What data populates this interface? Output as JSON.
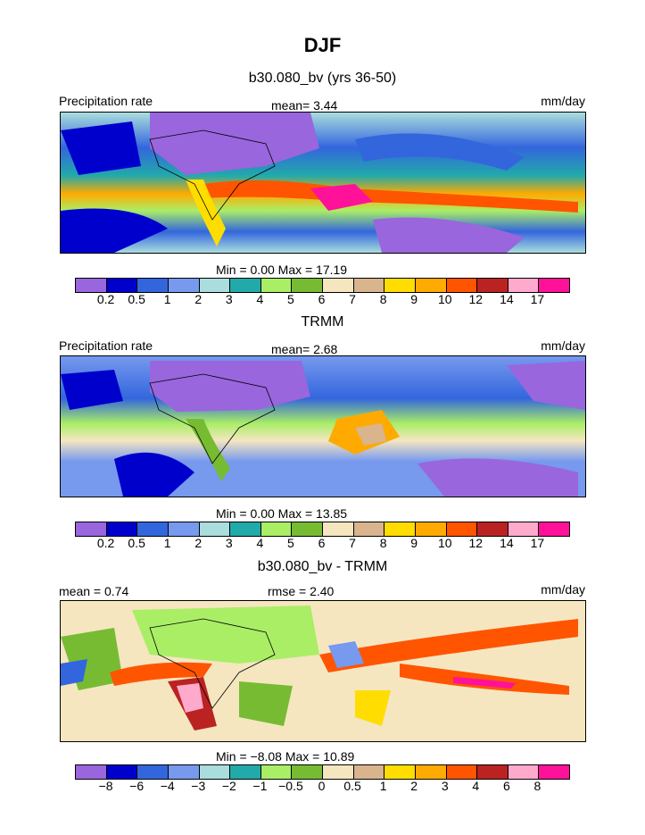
{
  "title": "DJF",
  "panels": [
    {
      "subtitle": "b30.080_bv (yrs 36-50)",
      "left_label": "Precipitation rate",
      "center_label": "mean=    3.44",
      "right_label": "mm/day",
      "minmax": "Min =     0.00  Max =   17.19",
      "ticks": [
        "0.2",
        "0.5",
        "1",
        "2",
        "3",
        "4",
        "5",
        "6",
        "7",
        "8",
        "9",
        "10",
        "12",
        "14",
        "17"
      ],
      "colors": [
        "#9966dd",
        "#0000cc",
        "#3366dd",
        "#7799ee",
        "#aadddd",
        "#22aaaa",
        "#aaee66",
        "#77bb33",
        "#f5e6c0",
        "#d9b48c",
        "#ffdd00",
        "#ffaa00",
        "#ff5500",
        "#bb2222",
        "#ffaacc",
        "#ff1199"
      ]
    },
    {
      "subtitle": "TRMM",
      "left_label": "Precipitation rate",
      "center_label": "mean=    2.68",
      "right_label": "mm/day",
      "minmax": "Min =     0.00  Max =   13.85",
      "ticks": [
        "0.2",
        "0.5",
        "1",
        "2",
        "3",
        "4",
        "5",
        "6",
        "7",
        "8",
        "9",
        "10",
        "12",
        "14",
        "17"
      ],
      "colors": [
        "#9966dd",
        "#0000cc",
        "#3366dd",
        "#7799ee",
        "#aadddd",
        "#22aaaa",
        "#aaee66",
        "#77bb33",
        "#f5e6c0",
        "#d9b48c",
        "#ffdd00",
        "#ffaa00",
        "#ff5500",
        "#bb2222",
        "#ffaacc",
        "#ff1199"
      ]
    },
    {
      "subtitle": "b30.080_bv - TRMM",
      "left_label": "mean =    0.74",
      "center_label": "rmse =    2.40",
      "right_label": "mm/day",
      "minmax": "Min =   −8.08  Max =   10.89",
      "ticks": [
        "−8",
        "−6",
        "−4",
        "−3",
        "−2",
        "−1",
        "−0.5",
        "0",
        "0.5",
        "1",
        "2",
        "3",
        "4",
        "6",
        "8"
      ],
      "colors": [
        "#9966dd",
        "#0000cc",
        "#3366dd",
        "#7799ee",
        "#aadddd",
        "#22aaaa",
        "#aaee66",
        "#77bb33",
        "#f5e6c0",
        "#d9b48c",
        "#ffdd00",
        "#ffaa00",
        "#ff5500",
        "#bb2222",
        "#ffaacc",
        "#ff1199"
      ]
    }
  ]
}
